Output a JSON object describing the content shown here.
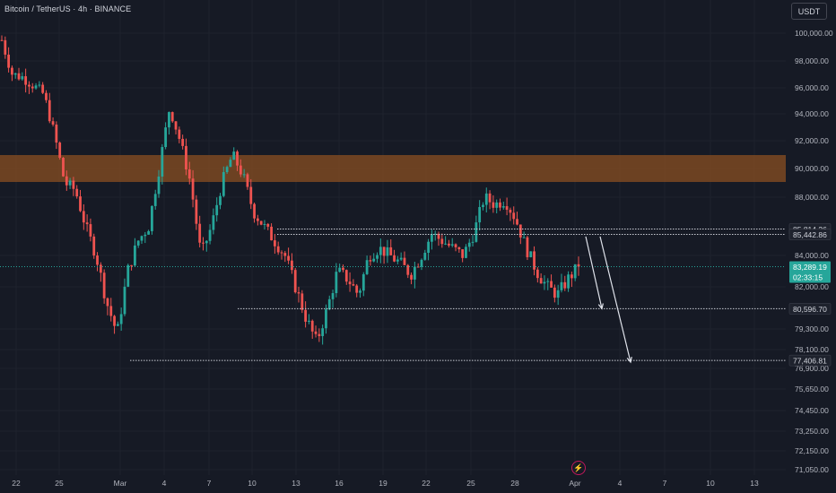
{
  "header": {
    "title": "Bitcoin / TetherUS · 4h · BINANCE",
    "currency": "USDT"
  },
  "colors": {
    "background": "#161a25",
    "up": "#26a69a",
    "down": "#ef5350",
    "zone": "#8a4f22",
    "grid": "#1e222d",
    "text": "#b2b5be",
    "current_badge": "#26a69a"
  },
  "chart_data": {
    "type": "candlestick",
    "symbol": "BTCUSDT",
    "interval": "4h",
    "exchange": "BINANCE",
    "ylim": [
      70500,
      101500
    ],
    "y_ticks": [
      "100,000.00",
      "98,000.00",
      "96,000.00",
      "94,000.00",
      "92,000.00",
      "90,000.00",
      "88,000.00",
      "84,000.00",
      "82,000.00",
      "79,300.00",
      "78,100.00",
      "76,900.00",
      "75,650.00",
      "74,450.00",
      "73,250.00",
      "72,150.00",
      "71,050.00"
    ],
    "x_ticks": [
      "22",
      "25",
      "Mar",
      "4",
      "7",
      "10",
      "13",
      "16",
      "19",
      "22",
      "25",
      "28",
      "Apr",
      "4",
      "7",
      "10",
      "13"
    ],
    "price_path": [
      99500,
      97000,
      96800,
      96200,
      95500,
      92500,
      89000,
      88500,
      86000,
      84000,
      81000,
      79000,
      83000,
      85000,
      86000,
      90000,
      94500,
      92000,
      89000,
      84000,
      86000,
      89000,
      91000,
      89500,
      87000,
      86000,
      85000,
      84000,
      82000,
      80000,
      78500,
      80500,
      83000,
      82500,
      81500,
      84000,
      84500,
      84000,
      83500,
      82800,
      84000,
      85500,
      85000,
      84500,
      84000,
      85500,
      88000,
      87500,
      87800,
      86500,
      84500,
      83000,
      82000,
      81500,
      82500,
      83289
    ],
    "resistance_zone": [
      89000,
      91000
    ],
    "levels": [
      {
        "value": 85814.26,
        "label": "85,814.26"
      },
      {
        "value": 85442.86,
        "label": "85,442.86"
      },
      {
        "value": 80596.7,
        "label": "80,596.70"
      },
      {
        "value": 77406.81,
        "label": "77,406.81"
      }
    ],
    "current_price": {
      "value": 83289.19,
      "label": "83,289.19",
      "countdown": "02:33:15"
    },
    "projection_arrows": [
      {
        "from": 85300,
        "to": 80600
      },
      {
        "from": 85300,
        "to": 77300
      }
    ]
  },
  "footer": {
    "lightning_icon": "lightning-icon"
  }
}
